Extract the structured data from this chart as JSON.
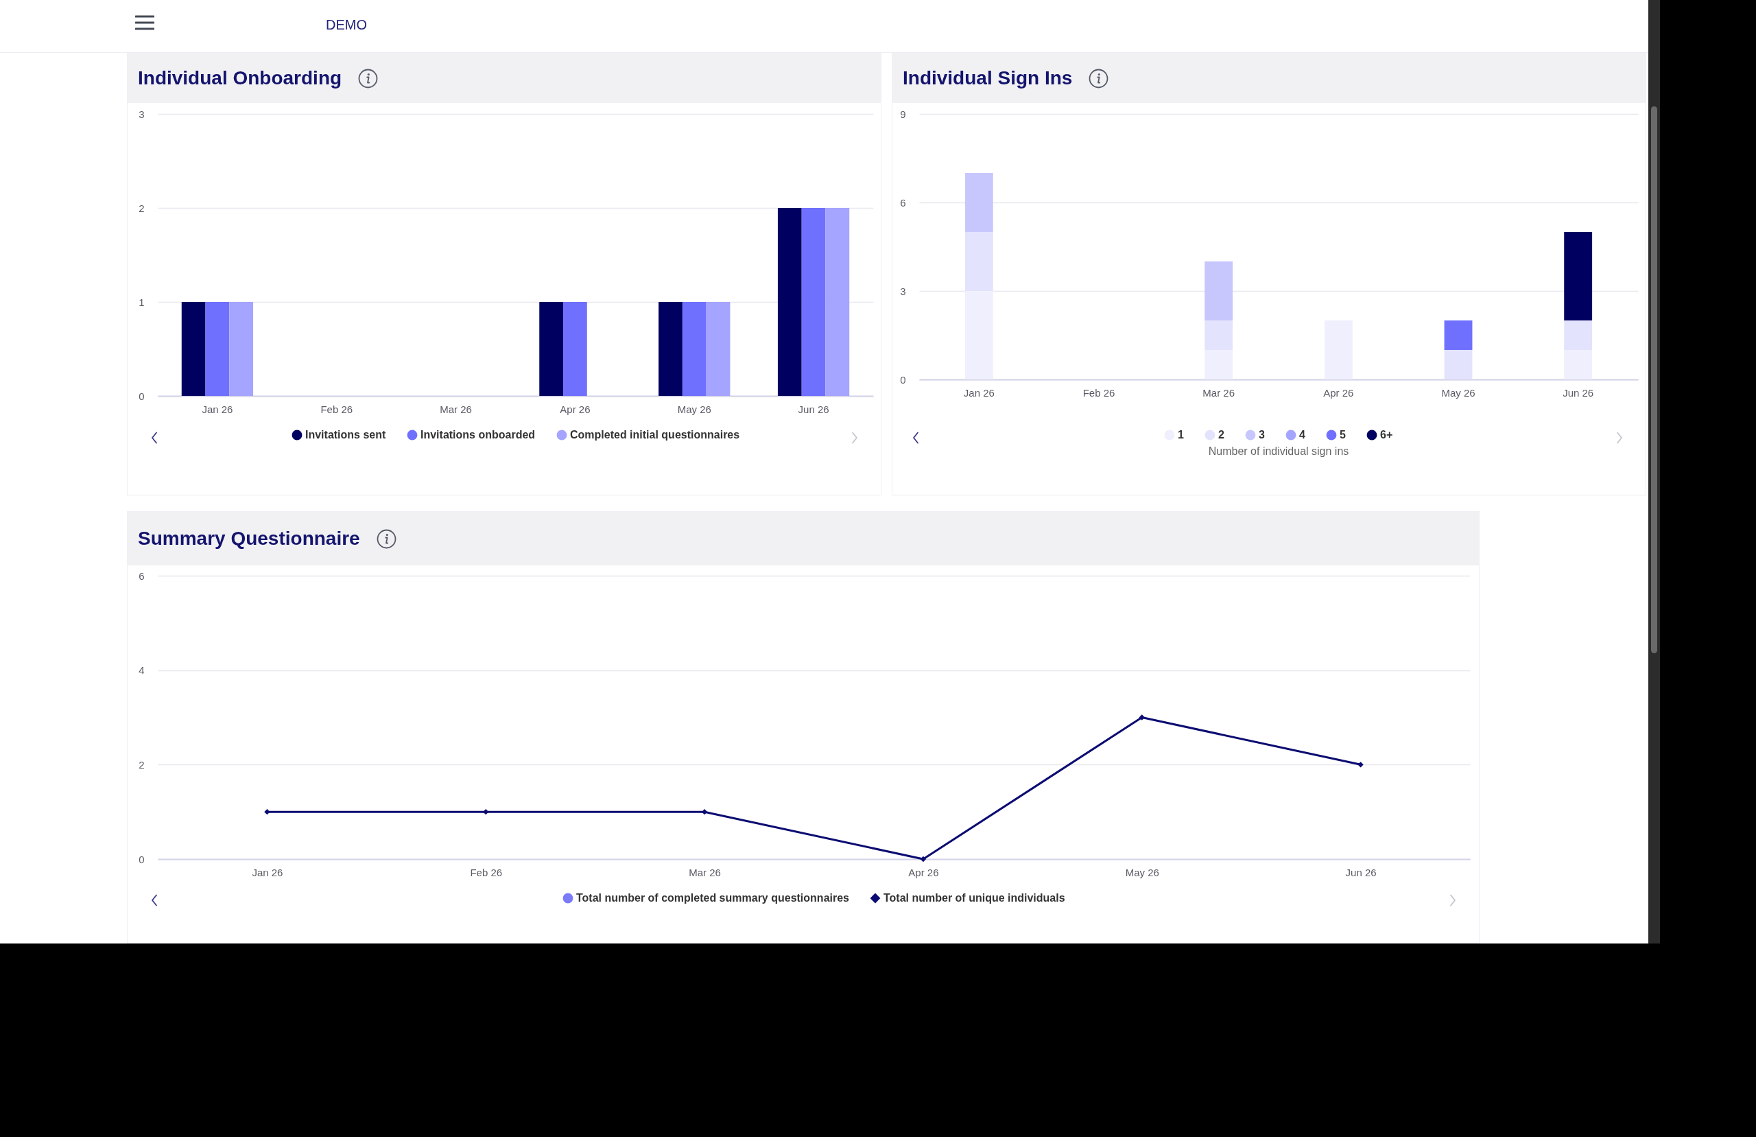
{
  "chart_data": [
    {
      "type": "bar",
      "title": "Individual Onboarding",
      "annotations": [
        "DEMO"
      ],
      "categories": [
        "Jan 26",
        "Feb 26",
        "Mar 26",
        "Apr 26",
        "May 26",
        "Jun 26"
      ],
      "series": [
        {
          "name": "Invitations sent",
          "color": "#000060",
          "values": [
            1,
            0,
            0,
            1,
            1,
            2
          ]
        },
        {
          "name": "Invitations onboarded",
          "color": "#7070ff",
          "values": [
            1,
            0,
            0,
            1,
            1,
            2
          ]
        },
        {
          "name": "Completed initial questionnaires",
          "color": "#a5a4ff",
          "values": [
            1,
            0,
            0,
            0,
            1,
            2
          ]
        }
      ],
      "ylim": [
        0,
        3
      ],
      "yticks": [
        0,
        1,
        2,
        3
      ],
      "grid": "y",
      "legend": "bottom"
    },
    {
      "type": "bar",
      "stacked": true,
      "title": "Individual Sign Ins",
      "legend_title": "Number of individual sign ins",
      "categories": [
        "Jan 26",
        "Feb 26",
        "Mar 26",
        "Apr 26",
        "May 26",
        "Jun 26"
      ],
      "series": [
        {
          "name": "1",
          "color": "#f0effd",
          "values": [
            3,
            0,
            1,
            2,
            0,
            1
          ]
        },
        {
          "name": "2",
          "color": "#e4e3fd",
          "values": [
            2,
            0,
            1,
            0,
            1,
            1
          ]
        },
        {
          "name": "3",
          "color": "#c8c7fd",
          "values": [
            2,
            0,
            2,
            0,
            0,
            0
          ]
        },
        {
          "name": "4",
          "color": "#a5a4ff",
          "values": [
            0,
            0,
            0,
            0,
            0,
            0
          ]
        },
        {
          "name": "5",
          "color": "#7070ff",
          "values": [
            0,
            0,
            0,
            0,
            1,
            0
          ]
        },
        {
          "name": "6+",
          "color": "#000060",
          "values": [
            0,
            0,
            0,
            0,
            0,
            3
          ]
        }
      ],
      "ylim": [
        0,
        9
      ],
      "yticks": [
        0,
        3,
        6,
        9
      ],
      "grid": "y",
      "legend": "bottom"
    },
    {
      "type": "line",
      "title": "Summary Questionnaire",
      "categories": [
        "Jan 26",
        "Feb 26",
        "Mar 26",
        "Apr 26",
        "May 26",
        "Jun 26"
      ],
      "series": [
        {
          "name": "Total number of completed summary questionnaires",
          "color": "#7b7bf8",
          "marker": "circle",
          "values": [
            null,
            null,
            null,
            null,
            null,
            null
          ]
        },
        {
          "name": "Total number of unique individuals",
          "color": "#0c0c72",
          "marker": "diamond",
          "values": [
            1,
            1,
            1,
            0,
            3,
            2
          ]
        }
      ],
      "ylim": [
        0,
        6
      ],
      "yticks": [
        0,
        2,
        4,
        6
      ],
      "grid": "y",
      "legend": "bottom"
    }
  ]
}
